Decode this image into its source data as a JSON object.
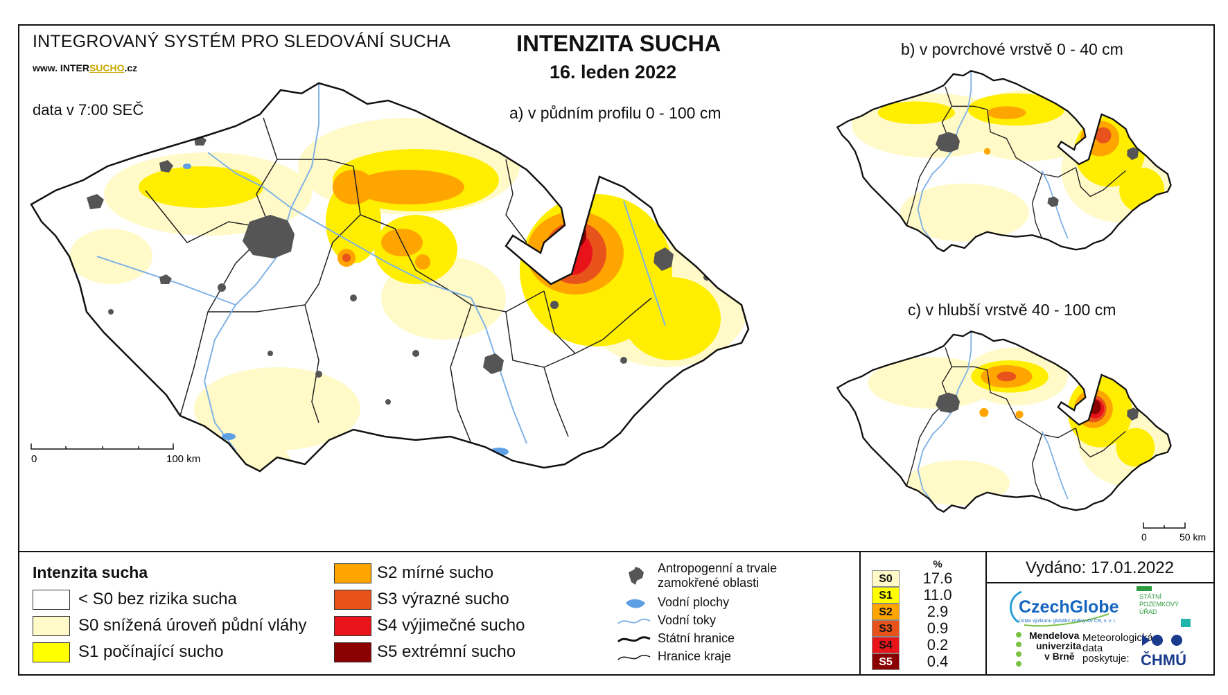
{
  "header": {
    "system_title": "INTEGROVANÝ SYSTÉM PRO SLEDOVÁNÍ SUCHA",
    "url_prefix": "www. INTER",
    "url_brand": "SUCHO",
    "url_suffix": ".cz",
    "data_time": "data v 7:00 SEČ",
    "main_title": "INTENZITA SUCHA",
    "date": "16. leden 2022"
  },
  "maps": {
    "a_title": "a) v půdním profilu 0 - 100 cm",
    "b_title": "b) v povrchové vrstvě 0 - 40 cm",
    "c_title": "c) v hlubší vrstvě 40 - 100 cm",
    "scale_main": {
      "zero": "0",
      "end": "100 km"
    },
    "scale_small": {
      "zero": "0",
      "end": "50 km"
    }
  },
  "legend": {
    "title": "Intenzita sucha",
    "classes": [
      {
        "label": "< S0 bez rizika sucha",
        "color": "#ffffff"
      },
      {
        "label": "S0 snížená úroveň půdní vláhy",
        "color": "#fffac8"
      },
      {
        "label": "S1 počínající sucho",
        "color": "#ffff00"
      },
      {
        "label": "S2 mírné sucho",
        "color": "#ffa500"
      },
      {
        "label": "S3 výrazné sucho",
        "color": "#e8531b"
      },
      {
        "label": "S4 výjimečné sucho",
        "color": "#e8141a"
      },
      {
        "label": "S5 extrémní sucho",
        "color": "#8b0000"
      }
    ],
    "layers": [
      {
        "label": "Antropogenní a trvale zamokřené oblasti",
        "icon": "urban-area-icon"
      },
      {
        "label": "Vodní plochy",
        "icon": "water-body-icon"
      },
      {
        "label": "Vodní toky",
        "icon": "river-icon"
      },
      {
        "label": "Státní hranice",
        "icon": "state-border-icon"
      },
      {
        "label": "Hranice kraje",
        "icon": "region-border-icon"
      }
    ]
  },
  "stats": {
    "header": "%",
    "rows": [
      {
        "code": "S0",
        "value": "17.6",
        "color": "#fffac8"
      },
      {
        "code": "S1",
        "value": "11.0",
        "color": "#ffff00"
      },
      {
        "code": "S2",
        "value": "2.9",
        "color": "#ffa500"
      },
      {
        "code": "S3",
        "value": "0.9",
        "color": "#e8531b"
      },
      {
        "code": "S4",
        "value": "0.2",
        "color": "#e8141a"
      },
      {
        "code": "S5",
        "value": "0.4",
        "color": "#8b0000"
      }
    ]
  },
  "footer": {
    "issued": "Vydáno: 17.01.2022",
    "logo_czechglobe": "CzechGlobe",
    "logo_czechglobe_sub": "Ústav výzkumu globální změny AV ČR, v. v. i.",
    "logo_spu_lines": [
      "STÁTNÍ",
      "POZEMKOVÝ",
      "ÚŘAD"
    ],
    "logo_mendel_lines": [
      "Mendelova",
      "univerzita",
      "v Brně"
    ],
    "met_lines": [
      "Meteorologická",
      "data",
      "poskytuje:"
    ],
    "logo_chmu": "ČHMÚ"
  }
}
